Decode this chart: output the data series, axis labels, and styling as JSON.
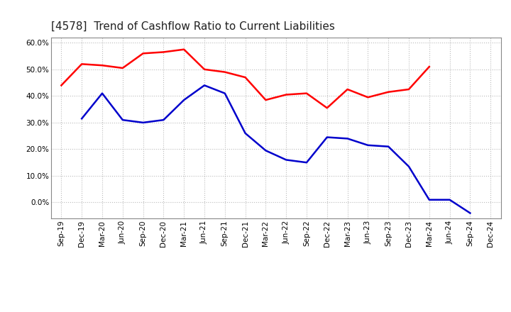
{
  "title": "[4578]  Trend of Cashflow Ratio to Current Liabilities",
  "x_labels": [
    "Sep-19",
    "Dec-19",
    "Mar-20",
    "Jun-20",
    "Sep-20",
    "Dec-20",
    "Mar-21",
    "Jun-21",
    "Sep-21",
    "Dec-21",
    "Mar-22",
    "Jun-22",
    "Sep-22",
    "Dec-22",
    "Mar-23",
    "Jun-23",
    "Sep-23",
    "Dec-23",
    "Mar-24",
    "Jun-24",
    "Sep-24",
    "Dec-24"
  ],
  "operating_cf": [
    0.44,
    0.52,
    0.515,
    0.505,
    0.56,
    0.565,
    0.575,
    0.5,
    0.49,
    0.47,
    0.385,
    0.405,
    0.41,
    0.355,
    0.425,
    0.395,
    0.415,
    0.425,
    0.51,
    null,
    null,
    null
  ],
  "free_cf": [
    null,
    0.315,
    0.41,
    0.31,
    0.3,
    0.31,
    0.385,
    0.44,
    0.41,
    0.26,
    0.195,
    0.16,
    0.15,
    0.245,
    0.24,
    0.215,
    0.21,
    0.135,
    0.01,
    0.01,
    -0.04,
    null
  ],
  "ylim": [
    -0.06,
    0.62
  ],
  "yticks": [
    0.0,
    0.1,
    0.2,
    0.3,
    0.4,
    0.5,
    0.6
  ],
  "operating_color": "#FF0000",
  "free_color": "#0000CC",
  "background_color": "#FFFFFF",
  "grid_color": "#BBBBBB",
  "title_fontsize": 11,
  "legend_fontsize": 9,
  "tick_fontsize": 7.5
}
